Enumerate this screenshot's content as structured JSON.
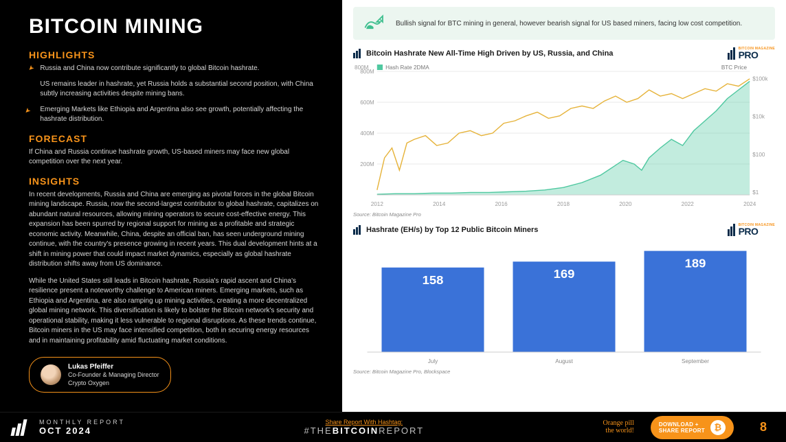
{
  "title": "BITCOIN MINING",
  "highlights": {
    "heading": "HIGHLIGHTS",
    "items": [
      "Russia and China now contribute significantly to global Bitcoin hashrate.",
      "US remains leader in hashrate, yet Russia holds a substantial second position, with China subtly increasing activities despite mining bans.",
      "Emerging Markets like Ethiopia and Argentina also see growth, potentially affecting the hashrate distribution."
    ]
  },
  "forecast": {
    "heading": "FORECAST",
    "text": "If China and Russia continue hashrate growth, US-based miners may face new global competition over the next year."
  },
  "insights": {
    "heading": "INSIGHTS",
    "p1": "In recent developments, Russia and China are emerging as pivotal forces in the global Bitcoin mining landscape. Russia, now the second-largest contributor to global hashrate, capitalizes on abundant natural resources, allowing mining operators to secure cost-effective energy. This expansion has been spurred by regional support for mining as a profitable and strategic economic activity. Meanwhile, China, despite an official ban, has seen underground mining continue, with the country's presence growing in recent years. This dual development hints at a shift in mining power that could impact market dynamics, especially as global hashrate distribution shifts away from US dominance.",
    "p2": "While the United States still leads in Bitcoin hashrate, Russia's rapid ascent and China's resilience present a noteworthy challenge to American miners. Emerging markets, such as Ethiopia and Argentina, are also ramping up mining activities, creating a more decentralized global mining network. This diversification is likely to bolster the Bitcoin network's security and operational stability, making it less vulnerable to regional disruptions. As these trends continue, Bitcoin miners in the US may face intensified competition, both in securing energy resources and in maintaining profitability amid fluctuating market conditions."
  },
  "author": {
    "name": "Lukas Pfeiffer",
    "role": "Co-Founder & Managing Director",
    "company": "Crypto Oxygen"
  },
  "note": "Bullish signal for BTC mining in general, however bearish signal for US based miners, facing low cost competition.",
  "chart1": {
    "title": "Bitcoin Hashrate New All-Time High Driven by US, Russia, and China",
    "type": "line+area",
    "y_left_label_max": "800M",
    "y_left_ticks": [
      "200M",
      "400M",
      "600M",
      "800M"
    ],
    "x_ticks": [
      "2012",
      "2014",
      "2016",
      "2018",
      "2020",
      "2022",
      "2024"
    ],
    "legend": {
      "hash": "Hash Rate 2DMA",
      "price": "BTC Price"
    },
    "right_ticks": [
      "$1",
      "$100",
      "$10k",
      "$100k"
    ],
    "hash_color": "#4fc8a0",
    "price_color": "#e9b usphere",
    "price_color_hex": "#e6b33a",
    "grid_color": "#eaeaea",
    "source": "Source: Bitcoin Magazine Pro",
    "hash_points": [
      [
        0.0,
        0.995
      ],
      [
        0.05,
        0.99
      ],
      [
        0.1,
        0.99
      ],
      [
        0.15,
        0.985
      ],
      [
        0.2,
        0.985
      ],
      [
        0.25,
        0.98
      ],
      [
        0.3,
        0.98
      ],
      [
        0.35,
        0.975
      ],
      [
        0.4,
        0.97
      ],
      [
        0.45,
        0.96
      ],
      [
        0.5,
        0.94
      ],
      [
        0.55,
        0.9
      ],
      [
        0.6,
        0.84
      ],
      [
        0.63,
        0.78
      ],
      [
        0.66,
        0.72
      ],
      [
        0.69,
        0.75
      ],
      [
        0.71,
        0.8
      ],
      [
        0.73,
        0.7
      ],
      [
        0.76,
        0.62
      ],
      [
        0.79,
        0.55
      ],
      [
        0.82,
        0.6
      ],
      [
        0.85,
        0.48
      ],
      [
        0.88,
        0.4
      ],
      [
        0.91,
        0.32
      ],
      [
        0.94,
        0.22
      ],
      [
        0.97,
        0.15
      ],
      [
        1.0,
        0.08
      ]
    ],
    "price_points": [
      [
        0.0,
        0.96
      ],
      [
        0.02,
        0.7
      ],
      [
        0.04,
        0.62
      ],
      [
        0.06,
        0.8
      ],
      [
        0.08,
        0.58
      ],
      [
        0.1,
        0.55
      ],
      [
        0.13,
        0.52
      ],
      [
        0.16,
        0.6
      ],
      [
        0.19,
        0.58
      ],
      [
        0.22,
        0.5
      ],
      [
        0.25,
        0.48
      ],
      [
        0.28,
        0.52
      ],
      [
        0.31,
        0.5
      ],
      [
        0.34,
        0.42
      ],
      [
        0.37,
        0.4
      ],
      [
        0.4,
        0.36
      ],
      [
        0.43,
        0.33
      ],
      [
        0.46,
        0.38
      ],
      [
        0.49,
        0.36
      ],
      [
        0.52,
        0.3
      ],
      [
        0.55,
        0.28
      ],
      [
        0.58,
        0.3
      ],
      [
        0.61,
        0.24
      ],
      [
        0.64,
        0.2
      ],
      [
        0.67,
        0.25
      ],
      [
        0.7,
        0.22
      ],
      [
        0.73,
        0.15
      ],
      [
        0.76,
        0.2
      ],
      [
        0.79,
        0.18
      ],
      [
        0.82,
        0.22
      ],
      [
        0.85,
        0.18
      ],
      [
        0.88,
        0.14
      ],
      [
        0.91,
        0.16
      ],
      [
        0.94,
        0.1
      ],
      [
        0.97,
        0.12
      ],
      [
        1.0,
        0.06
      ]
    ]
  },
  "chart2": {
    "title": "Hashrate (EH/s) by Top 12 Public Bitcoin Miners",
    "type": "bar",
    "categories": [
      "July",
      "August",
      "September"
    ],
    "values": [
      158,
      169,
      189
    ],
    "bar_color": "#3a72d8",
    "value_color": "#ffffff",
    "max_scale": 200,
    "source": "Source: Bitcoin Magazine Pro, Blockspace"
  },
  "pro_brand": {
    "top": "BITCOIN MAGAZINE",
    "main": "PRO"
  },
  "footer": {
    "label": "MONTHLY REPORT",
    "date": "OCT 2024",
    "share": "Share Report With Hashtag:",
    "hashtag_pre": "#THE",
    "hashtag_b": "BITCOIN",
    "hashtag_post": "REPORT",
    "pill1": "Orange pill",
    "pill2": "the world!",
    "download1": "DOWNLOAD +",
    "download2": "SHARE REPORT",
    "page": "8"
  },
  "colors": {
    "orange": "#f7931a",
    "navy": "#0a2b4a",
    "note_bg": "#ecf6f0",
    "bull_green": "#3fbf8f"
  }
}
